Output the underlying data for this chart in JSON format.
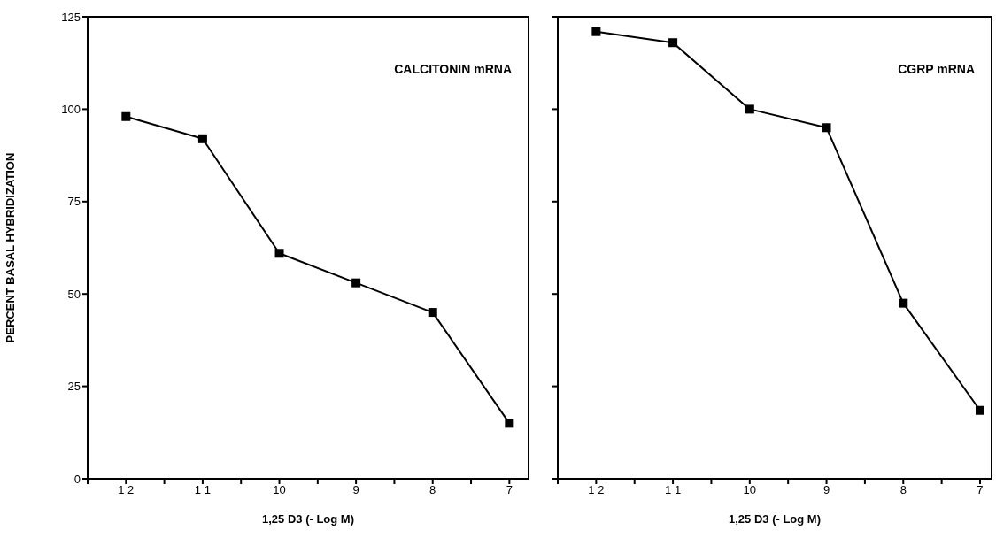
{
  "chart_data": [
    {
      "type": "line",
      "annotations": [
        "CALCITONIN mRNA"
      ],
      "xlabel": "1,25 D3 (- Log M)",
      "ylabel": "PERCENT BASAL HYBRIDIZATION",
      "x": [
        12,
        11,
        10,
        9,
        8,
        7
      ],
      "series": [
        {
          "color": "#000000",
          "values": [
            98,
            92,
            61,
            53,
            45,
            15
          ]
        }
      ],
      "xlim": [
        12.5,
        6.75
      ],
      "xticks": [
        {
          "value": 12.5,
          "label": null
        },
        {
          "value": 12,
          "label": "1 2"
        },
        {
          "value": 11.5,
          "label": null
        },
        {
          "value": 11,
          "label": "1 1"
        },
        {
          "value": 10.5,
          "label": null
        },
        10,
        {
          "value": 9.5,
          "label": null
        },
        9,
        {
          "value": 8.5,
          "label": null
        },
        8,
        {
          "value": 7.5,
          "label": null
        },
        7
      ],
      "ylim": [
        0,
        125
      ],
      "yticks": [
        0,
        25,
        50,
        75,
        100,
        125
      ],
      "marker": "square"
    },
    {
      "type": "line",
      "annotations": [
        "CGRP mRNA"
      ],
      "xlabel": "1,25 D3 (- Log M)",
      "x": [
        12,
        11,
        10,
        9,
        8,
        7
      ],
      "series": [
        {
          "color": "#000000",
          "values": [
            121,
            118,
            100,
            95,
            47.5,
            18.5
          ]
        }
      ],
      "xlim": [
        12.5,
        6.85
      ],
      "xticks": [
        {
          "value": 12.5,
          "label": null
        },
        {
          "value": 12,
          "label": "1 2"
        },
        {
          "value": 11.5,
          "label": null
        },
        {
          "value": 11,
          "label": "1 1"
        },
        {
          "value": 10.5,
          "label": null
        },
        10,
        {
          "value": 9.5,
          "label": null
        },
        9,
        {
          "value": 8.5,
          "label": null
        },
        8,
        {
          "value": 7.5,
          "label": null
        },
        7
      ],
      "ylim": [
        0,
        125
      ],
      "yticks": [
        0,
        25,
        50,
        75,
        100,
        125
      ],
      "marker": "square",
      "tick_labels": "x"
    }
  ]
}
